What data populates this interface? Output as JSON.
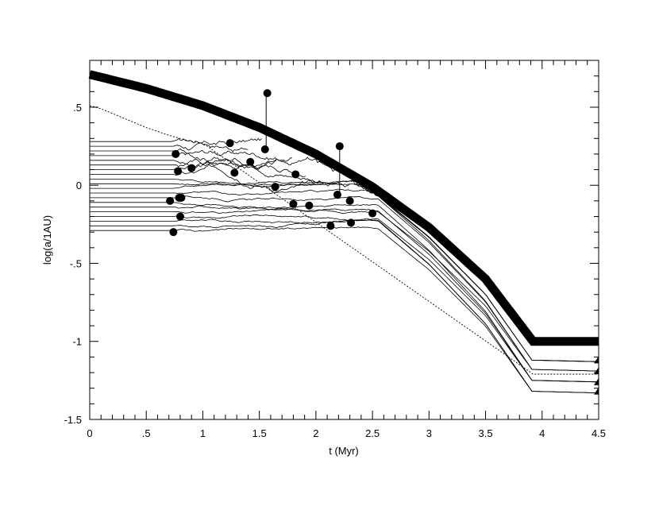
{
  "chart_data": {
    "type": "line",
    "title": "",
    "xlabel": "t (Myr)",
    "ylabel": "log(a/1AU)",
    "xlim": [
      0,
      4.5
    ],
    "ylim": [
      -1.5,
      0.8
    ],
    "grid": false,
    "x_ticks": [
      {
        "value": 0,
        "label": "0"
      },
      {
        "value": 0.5,
        "label": ".5"
      },
      {
        "value": 1,
        "label": "1"
      },
      {
        "value": 1.5,
        "label": "1.5"
      },
      {
        "value": 2,
        "label": "2"
      },
      {
        "value": 2.5,
        "label": "2.5"
      },
      {
        "value": 3,
        "label": "3"
      },
      {
        "value": 3.5,
        "label": "3.5"
      },
      {
        "value": 4,
        "label": "4"
      },
      {
        "value": 4.5,
        "label": "4.5"
      }
    ],
    "y_ticks": [
      {
        "value": 0.5,
        "label": ".5"
      },
      {
        "value": 0,
        "label": "0"
      },
      {
        "value": -0.5,
        "label": "-.5"
      },
      {
        "value": -1,
        "label": "-1"
      },
      {
        "value": -1.5,
        "label": "-1.5"
      }
    ],
    "inner_edge": {
      "description_free": true,
      "x": [
        0,
        0.5,
        1,
        1.5,
        2,
        2.5,
        3,
        3.5,
        3.92,
        4.5
      ],
      "y": [
        0.71,
        0.62,
        0.51,
        0.37,
        0.2,
        -0.01,
        -0.27,
        -0.6,
        -1.0,
        -1.0
      ]
    },
    "dotted_track": {
      "x": [
        0,
        0.1,
        0.3,
        0.5,
        0.7,
        0.9,
        1.0,
        3.92,
        4.5
      ],
      "y": [
        0.51,
        0.49,
        0.43,
        0.37,
        0.32,
        0.28,
        0.27,
        -1.21,
        -1.21
      ]
    },
    "initial_orbits": [
      0.28,
      0.25,
      0.22,
      0.19,
      0.16,
      0.13,
      0.1,
      0.07,
      0.04,
      0.01,
      -0.02,
      -0.05,
      -0.08,
      -0.11,
      -0.14,
      -0.17,
      -0.2,
      -0.23,
      -0.26,
      -0.29
    ],
    "perturb_start_t": 0.72,
    "migration_start_t": 2.55,
    "final_orbits": [
      -1.13,
      -1.19,
      -1.26,
      -1.33
    ],
    "protoplanets": [
      {
        "t": 0.71,
        "y": -0.1
      },
      {
        "t": 0.74,
        "y": -0.3
      },
      {
        "t": 0.76,
        "y": 0.2
      },
      {
        "t": 0.78,
        "y": 0.09
      },
      {
        "t": 0.79,
        "y": -0.08
      },
      {
        "t": 0.8,
        "y": -0.2
      },
      {
        "t": 0.81,
        "y": -0.08
      },
      {
        "t": 0.9,
        "y": 0.11
      },
      {
        "t": 1.24,
        "y": 0.27
      },
      {
        "t": 1.28,
        "y": 0.08
      },
      {
        "t": 1.42,
        "y": 0.15
      },
      {
        "t": 1.55,
        "y": 0.23
      },
      {
        "t": 1.57,
        "y": 0.59
      },
      {
        "t": 1.64,
        "y": -0.01
      },
      {
        "t": 1.8,
        "y": -0.12
      },
      {
        "t": 1.82,
        "y": 0.07
      },
      {
        "t": 1.94,
        "y": -0.13
      },
      {
        "t": 2.13,
        "y": -0.26
      },
      {
        "t": 2.19,
        "y": -0.06
      },
      {
        "t": 2.21,
        "y": 0.25
      },
      {
        "t": 2.3,
        "y": -0.1
      },
      {
        "t": 2.31,
        "y": -0.24
      },
      {
        "t": 2.5,
        "y": -0.18
      }
    ],
    "stems": [
      {
        "t": 1.56,
        "y1": 0.23,
        "y2": 0.59
      },
      {
        "t": 2.21,
        "y1": -0.06,
        "y2": 0.25
      }
    ],
    "end_markers": [
      {
        "t": 4.5,
        "y": -1.12
      },
      {
        "t": 4.5,
        "y": -1.19
      },
      {
        "t": 4.5,
        "y": -1.26
      },
      {
        "t": 4.5,
        "y": -1.32
      }
    ]
  }
}
